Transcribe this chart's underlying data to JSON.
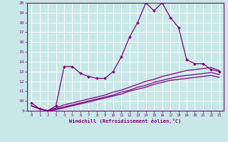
{
  "x": [
    0,
    1,
    2,
    3,
    4,
    5,
    6,
    7,
    8,
    9,
    10,
    11,
    12,
    13,
    14,
    15,
    16,
    17,
    18,
    19,
    20,
    21,
    22,
    23
  ],
  "line1": [
    9.8,
    9.2,
    9.0,
    9.5,
    13.5,
    13.5,
    12.8,
    12.5,
    12.3,
    12.3,
    13.0,
    14.5,
    16.5,
    18.0,
    20.0,
    19.2,
    20.0,
    18.5,
    17.5,
    14.2,
    13.8,
    13.8,
    13.2,
    13.0
  ],
  "line2": [
    9.5,
    9.2,
    9.0,
    9.3,
    9.6,
    9.8,
    10.0,
    10.2,
    10.4,
    10.6,
    10.9,
    11.1,
    11.4,
    11.7,
    12.0,
    12.2,
    12.5,
    12.7,
    12.9,
    13.1,
    13.2,
    13.3,
    13.4,
    13.1
  ],
  "line3": [
    9.5,
    9.2,
    9.0,
    9.2,
    9.4,
    9.6,
    9.8,
    10.0,
    10.2,
    10.4,
    10.6,
    10.9,
    11.1,
    11.4,
    11.6,
    11.9,
    12.1,
    12.3,
    12.5,
    12.6,
    12.7,
    12.8,
    12.9,
    12.7
  ],
  "line4": [
    9.5,
    9.2,
    9.0,
    9.1,
    9.3,
    9.5,
    9.7,
    9.9,
    10.1,
    10.3,
    10.5,
    10.7,
    11.0,
    11.2,
    11.4,
    11.7,
    11.9,
    12.1,
    12.2,
    12.3,
    12.4,
    12.5,
    12.6,
    12.4
  ],
  "color": "#800080",
  "bg_color": "#c8e8e8",
  "grid_color": "#ffffff",
  "xlabel": "Windchill (Refroidissement éolien,°C)",
  "ylim": [
    9,
    20
  ],
  "xlim": [
    0,
    23
  ],
  "yticks": [
    9,
    10,
    11,
    12,
    13,
    14,
    15,
    16,
    17,
    18,
    19,
    20
  ],
  "xticks": [
    0,
    1,
    2,
    3,
    4,
    5,
    6,
    7,
    8,
    9,
    10,
    11,
    12,
    13,
    14,
    15,
    16,
    17,
    18,
    19,
    20,
    21,
    22,
    23
  ]
}
